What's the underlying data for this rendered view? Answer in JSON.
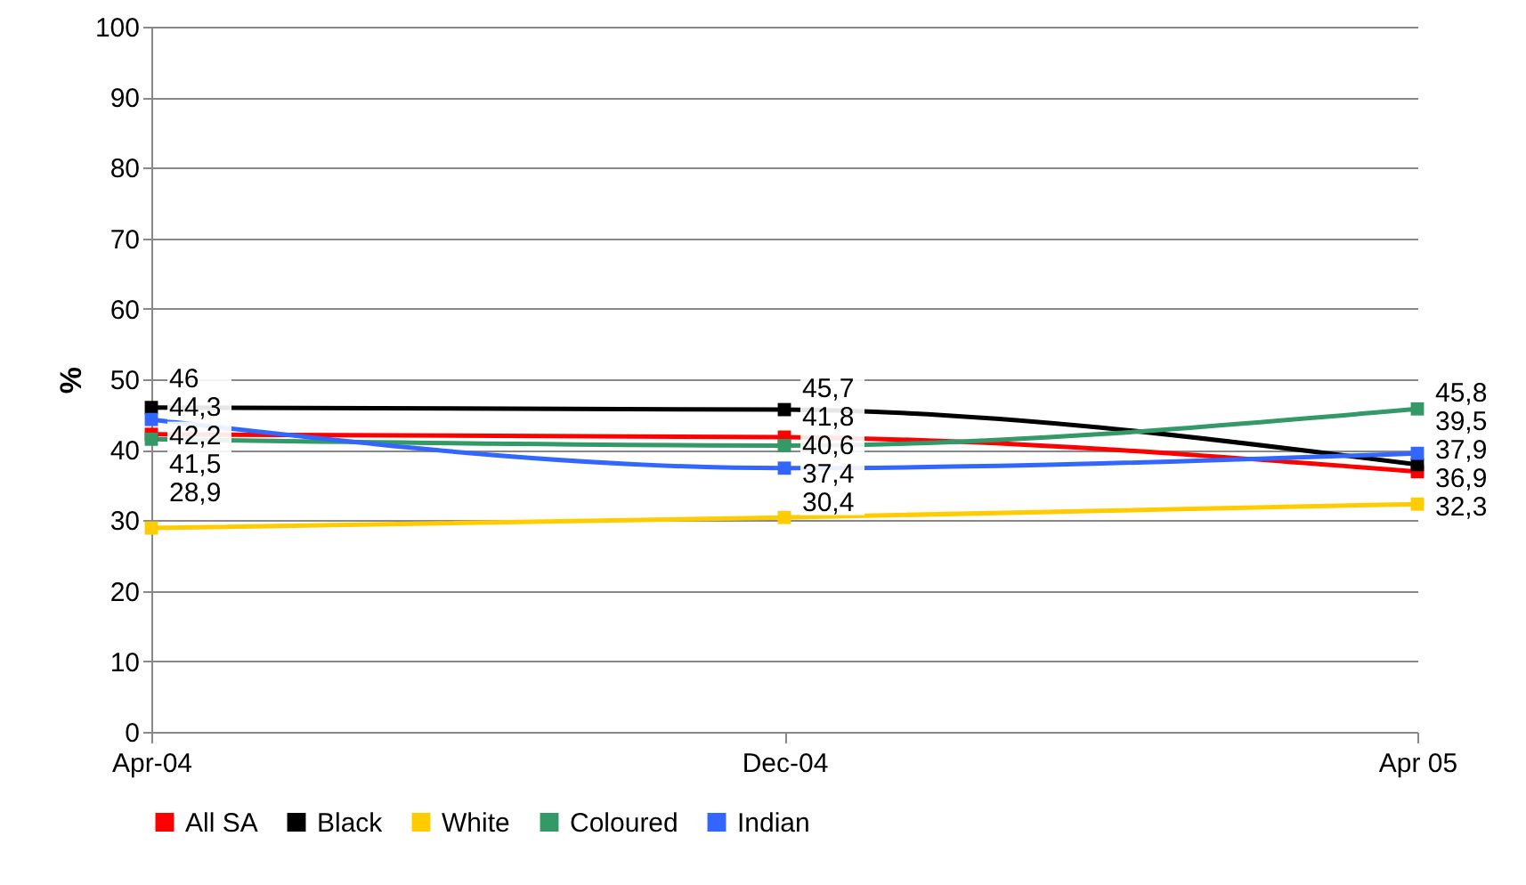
{
  "chart_data": {
    "type": "line",
    "ylabel": "%",
    "categories": [
      "Apr-04",
      "Dec-04",
      "Apr 05"
    ],
    "ylim": [
      0,
      100
    ],
    "yticks": [
      0,
      10,
      20,
      30,
      40,
      50,
      60,
      70,
      80,
      90,
      100
    ],
    "grid": "y",
    "legend": "bottom",
    "marker": "square",
    "line_style": "solid",
    "series": [
      {
        "name": "All SA",
        "color": "#ff0000",
        "values": [
          42.2,
          41.8,
          36.9
        ],
        "value_labels": [
          "42,2",
          "41,8",
          "36,9"
        ]
      },
      {
        "name": "Black",
        "color": "#000000",
        "values": [
          46,
          45.7,
          37.9
        ],
        "value_labels": [
          "46",
          "45,7",
          "37,9"
        ]
      },
      {
        "name": "White",
        "color": "#ffcc00",
        "values": [
          28.9,
          30.4,
          32.3
        ],
        "value_labels": [
          "28,9",
          "30,4",
          "32,3"
        ]
      },
      {
        "name": "Coloured",
        "color": "#339966",
        "values": [
          41.5,
          40.6,
          45.8
        ],
        "value_labels": [
          "41,5",
          "40,6",
          "45,8"
        ]
      },
      {
        "name": "Indian",
        "color": "#3366ff",
        "values": [
          44.3,
          37.4,
          39.5
        ],
        "value_labels": [
          "44,3",
          "37,4",
          "39,5"
        ]
      }
    ]
  }
}
